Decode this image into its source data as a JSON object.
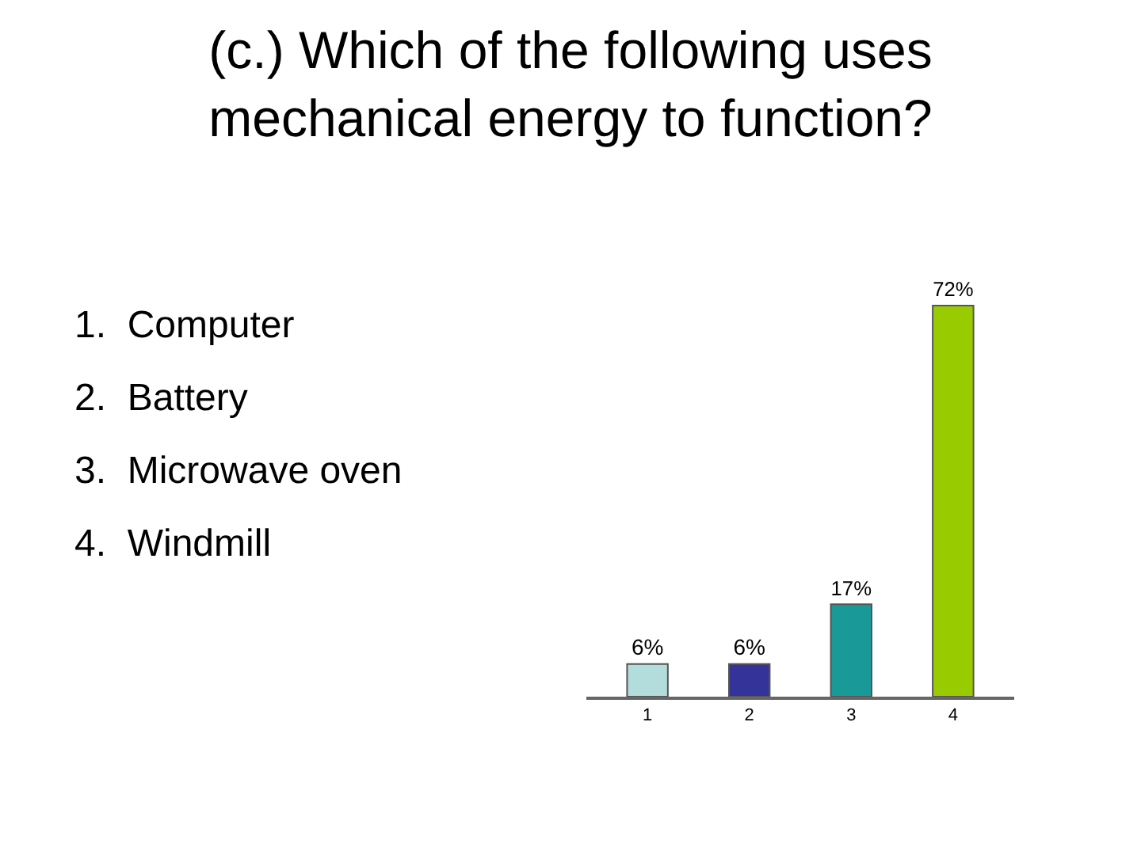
{
  "chart_data": {
    "type": "bar",
    "title": "(c.) Which of the following uses mechanical energy to function?",
    "categories": [
      "1",
      "2",
      "3",
      "4"
    ],
    "values": [
      6,
      6,
      17,
      72
    ],
    "value_labels": [
      "6%",
      "6%",
      "17%",
      "72%"
    ],
    "colors": [
      "#b3dcdc",
      "#333399",
      "#1a9999",
      "#99cc00"
    ],
    "tick_labels": "x",
    "legend": false,
    "annotations": [
      "1.  Computer",
      "2.  Battery",
      "3.  Microwave oven",
      "4.  Windmill"
    ]
  }
}
